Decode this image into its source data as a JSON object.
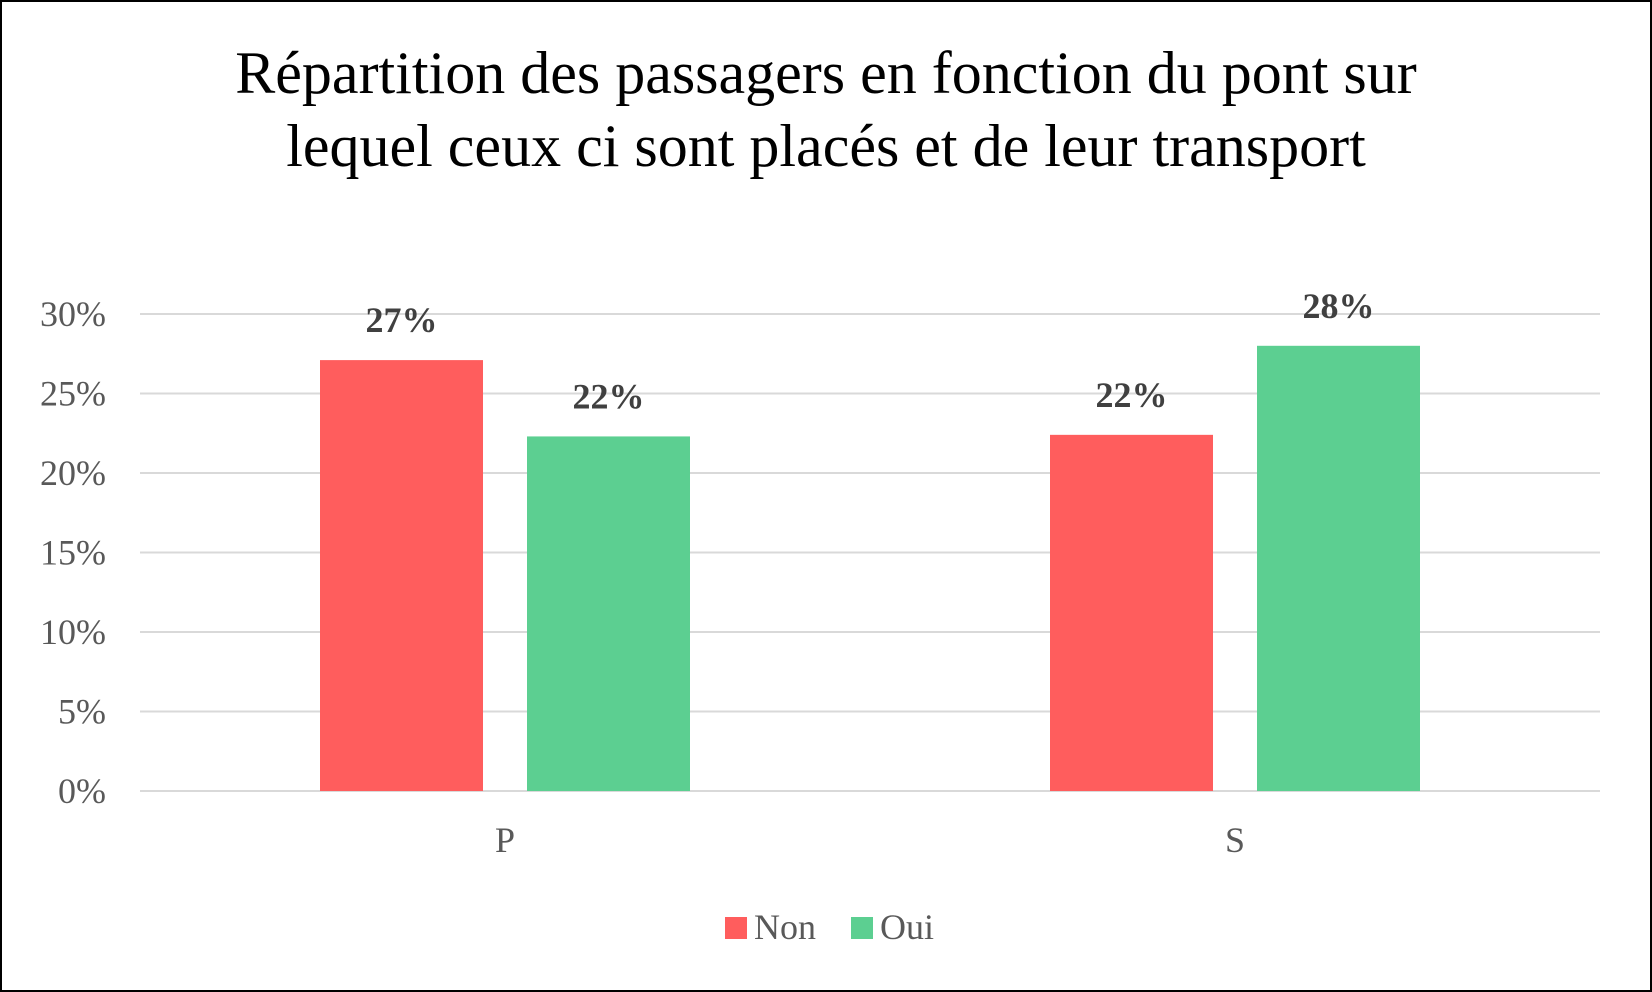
{
  "chart_data": {
    "type": "bar",
    "title_lines": [
      "Répartition des passagers en fonction du pont sur",
      "lequel ceux ci sont placés et de leur transport"
    ],
    "categories": [
      "P",
      "S"
    ],
    "series": [
      {
        "name": "Non",
        "values": [
          27,
          22
        ],
        "display_values": [
          27.1,
          22.4
        ],
        "labels": [
          "27%",
          "22%"
        ],
        "color": "#ff5d5d"
      },
      {
        "name": "Oui",
        "values": [
          22,
          28
        ],
        "display_values": [
          22.3,
          28.0
        ],
        "labels": [
          "22%",
          "28%"
        ],
        "color": "#5ccf91"
      }
    ],
    "ylim": [
      0,
      30
    ],
    "yticks": [
      0,
      5,
      10,
      15,
      20,
      25,
      30
    ],
    "ytick_labels": [
      "0%",
      "5%",
      "10%",
      "15%",
      "20%",
      "25%",
      "30%"
    ],
    "xlabel": "",
    "ylabel": "",
    "grid": true,
    "legend_position": "bottom",
    "gridline_color": "#d9d9d9"
  }
}
